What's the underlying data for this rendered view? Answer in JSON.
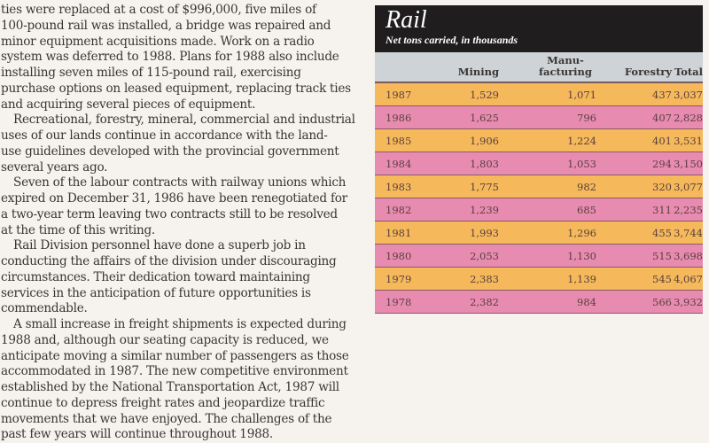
{
  "body_text": [
    {
      "text": "ties were replaced at a cost of $996,000, five miles of",
      "indent": false
    },
    {
      "text": "100-pound rail was installed, a bridge was repaired and",
      "indent": false
    },
    {
      "text": "minor equipment acquisitions made. Work on a radio",
      "indent": false
    },
    {
      "text": "system was deferred to 1988. Plans for 1988 also include",
      "indent": false
    },
    {
      "text": "installing seven miles of 115-pound rail, exercising",
      "indent": false
    },
    {
      "text": "purchase options on leased equipment, replacing track ties",
      "indent": false
    },
    {
      "text": "and acquiring several pieces of equipment.",
      "indent": false
    },
    {
      "text": "Recreational, forestry, mineral, commercial and industrial",
      "indent": true
    },
    {
      "text": "uses of our lands continue in accordance with the land-",
      "indent": false
    },
    {
      "text": "use guidelines developed with the provincial government",
      "indent": false
    },
    {
      "text": "several years ago.",
      "indent": false
    },
    {
      "text": "Seven of the labour contracts with railway unions which",
      "indent": true
    },
    {
      "text": "expired on December 31, 1986 have been renegotiated for",
      "indent": false
    },
    {
      "text": "a two-year term leaving two contracts still to be resolved",
      "indent": false
    },
    {
      "text": "at the time of this writing.",
      "indent": false
    },
    {
      "text": "Rail Division personnel have done a superb job in",
      "indent": true
    },
    {
      "text": "conducting the affairs of the division under discouraging",
      "indent": false
    },
    {
      "text": "circumstances. Their dedication toward maintaining",
      "indent": false
    },
    {
      "text": "services in the anticipation of future opportunities is",
      "indent": false
    },
    {
      "text": "commendable.",
      "indent": false
    },
    {
      "text": "A small increase in freight shipments is expected during",
      "indent": true
    },
    {
      "text": "1988 and, although our seating capacity is reduced, we",
      "indent": false
    },
    {
      "text": "anticipate moving a similar number of passengers as those",
      "indent": false
    },
    {
      "text": "accommodated in 1987. The new competitive environment",
      "indent": false
    },
    {
      "text": "established by the National Transportation Act, 1987 will",
      "indent": false
    },
    {
      "text": "continue to depress freight rates and jeopardize traffic",
      "indent": false
    },
    {
      "text": "movements that we have enjoyed. The challenges of the",
      "indent": false
    },
    {
      "text": "past few years will continue throughout 1988.",
      "indent": false
    }
  ],
  "table": {
    "title": "Rail",
    "subtitle": "Net tons carried, in thousands",
    "headers": [
      "",
      "Mining",
      "Manu-\nfacturing",
      "Forestry",
      "Total"
    ],
    "rows": [
      [
        "1987",
        "1,529",
        "1,071",
        "437",
        "3,037"
      ],
      [
        "1986",
        "1,625",
        "796",
        "407",
        "2,828"
      ],
      [
        "1985",
        "1,906",
        "1,224",
        "401",
        "3,531"
      ],
      [
        "1984",
        "1,803",
        "1,053",
        "294",
        "3,150"
      ],
      [
        "1983",
        "1,775",
        "982",
        "320",
        "3,077"
      ],
      [
        "1982",
        "1,239",
        "685",
        "311",
        "2,235"
      ],
      [
        "1981",
        "1,993",
        "1,296",
        "455",
        "3,744"
      ],
      [
        "1980",
        "2,053",
        "1,130",
        "515",
        "3,698"
      ],
      [
        "1979",
        "2,383",
        "1,139",
        "545",
        "4,067"
      ],
      [
        "1978",
        "2,382",
        "984",
        "566",
        "3,932"
      ]
    ],
    "colors": {
      "header": "#1f1d1e",
      "columns": "#cdd3d6",
      "odd": "#f5b85a",
      "even": "#e88bb0"
    }
  }
}
